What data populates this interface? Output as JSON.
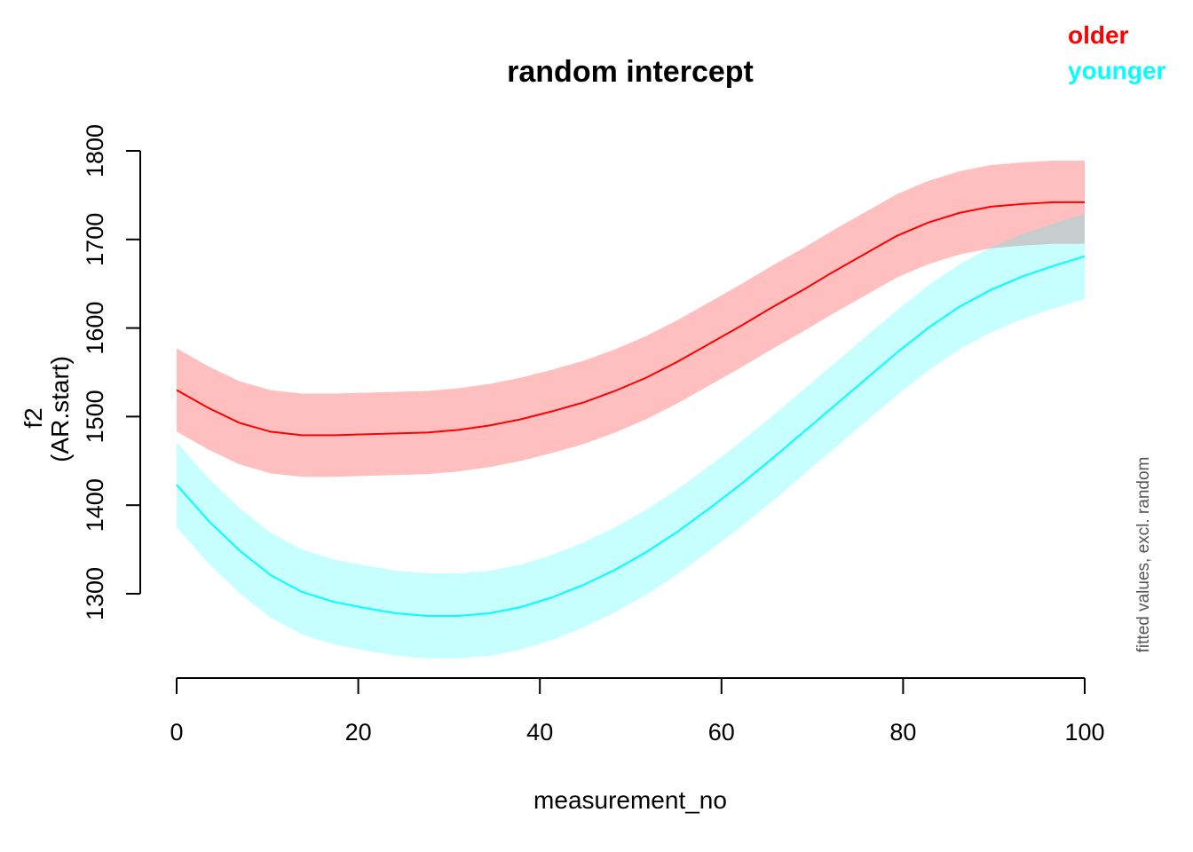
{
  "chart_data": {
    "type": "line",
    "title": "random intercept",
    "xlabel": "measurement_no",
    "ylabel": "f2",
    "ylabel_sub": "(AR.start)",
    "note": "fitted values, excl. random",
    "xlim": [
      0,
      100
    ],
    "ylim": [
      1210,
      1800
    ],
    "x_ticks": [
      0,
      20,
      40,
      60,
      80,
      100
    ],
    "y_ticks": [
      1300,
      1400,
      1500,
      1600,
      1700,
      1800
    ],
    "x": [
      0,
      3.45,
      6.9,
      10.34,
      13.79,
      17.24,
      20.69,
      24.14,
      27.59,
      31.03,
      34.48,
      37.93,
      41.38,
      44.83,
      48.28,
      51.72,
      55.17,
      58.62,
      62.07,
      65.52,
      68.97,
      72.41,
      75.86,
      79.31,
      82.76,
      86.21,
      89.66,
      93.1,
      96.55,
      100
    ],
    "series": [
      {
        "name": "older",
        "color": "#ff0000",
        "band_color": "rgba(255,0,0,0.25)",
        "values": [
          1530,
          1510,
          1493,
          1483,
          1479,
          1479,
          1480,
          1481,
          1482,
          1485,
          1490,
          1497,
          1506,
          1516,
          1529,
          1544,
          1562,
          1582,
          1602,
          1623,
          1643,
          1664,
          1684,
          1704,
          1719,
          1730,
          1737,
          1740,
          1742,
          1742
        ],
        "ci": 47
      },
      {
        "name": "younger",
        "color": "#00ffff",
        "band_color": "rgba(0,255,255,0.22)",
        "values": [
          1423,
          1383,
          1349,
          1321,
          1302,
          1291,
          1284,
          1278,
          1275,
          1275,
          1278,
          1285,
          1296,
          1310,
          1327,
          1347,
          1370,
          1396,
          1423,
          1452,
          1482,
          1512,
          1542,
          1572,
          1600,
          1624,
          1643,
          1658,
          1670,
          1681
        ],
        "ci": 48
      }
    ],
    "legend": [
      "older",
      "younger"
    ],
    "legend_position": "top-right"
  }
}
